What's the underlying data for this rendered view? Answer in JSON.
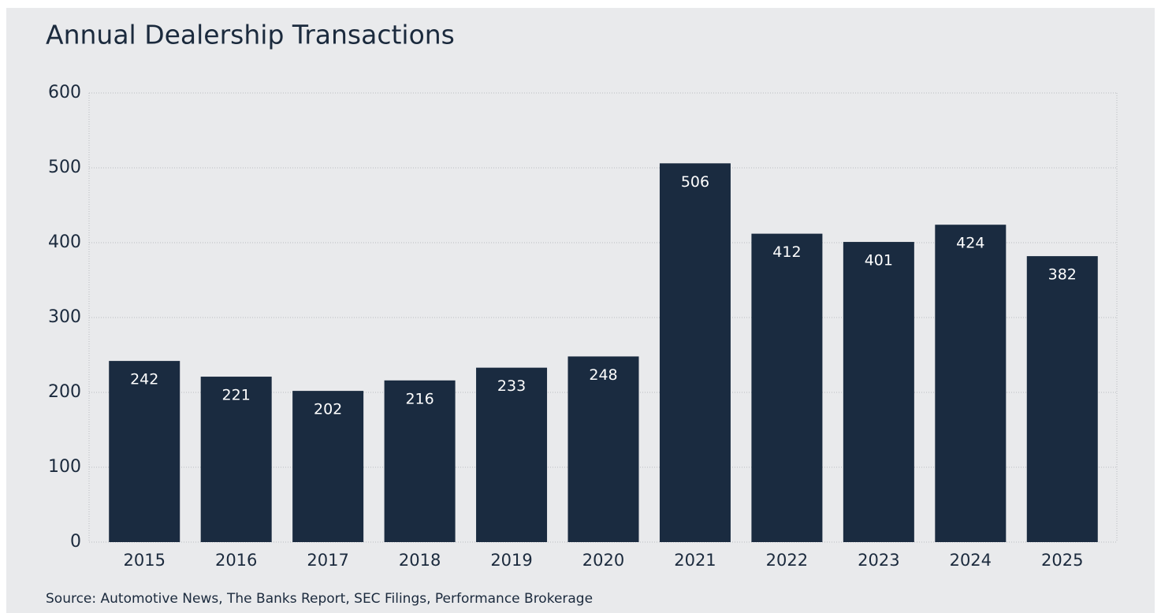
{
  "chart_data": {
    "type": "bar",
    "title": "Annual Dealership Transactions",
    "categories": [
      "2015",
      "2016",
      "2017",
      "2018",
      "2019",
      "2020",
      "2021",
      "2022",
      "2023",
      "2024",
      "2025"
    ],
    "values": [
      242,
      221,
      202,
      216,
      233,
      248,
      506,
      412,
      401,
      424,
      382
    ],
    "color": "#1a2b40",
    "ylim": [
      0,
      600
    ],
    "yticks": [
      0,
      100,
      200,
      300,
      400,
      500,
      600
    ],
    "grid": true,
    "source": "Source: Automotive News, The Banks Report, SEC Filings, Performance Brokerage"
  }
}
